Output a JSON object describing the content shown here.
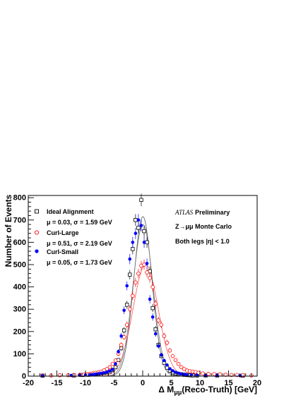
{
  "chart_data": {
    "type": "scatter",
    "title": "",
    "xlabel": "Δ Mμμ(Reco-Truth) [GeV]",
    "xlabel_main": "Δ M",
    "xlabel_sub": "μμ",
    "xlabel_rest": "(Reco-Truth) [GeV]",
    "ylabel": "Number of Events",
    "xlim": [
      -20,
      20
    ],
    "ylim": [
      0,
      810
    ],
    "x_ticks": [
      -20,
      -15,
      -10,
      -5,
      0,
      5,
      10,
      15,
      20
    ],
    "y_ticks": [
      0,
      100,
      200,
      300,
      400,
      500,
      600,
      700,
      800
    ],
    "grid": false,
    "legend_position": "top-left",
    "annotations": {
      "experiment": "ATLAS",
      "status": "Preliminary",
      "process": "Z→μμ Monte Carlo",
      "cut": "Both legs |η| < 1.0"
    },
    "series": [
      {
        "name": "Ideal Alignment",
        "stats": "μ =  0.03,  σ =  1.59 GeV",
        "marker": "open-square",
        "color": "#000000",
        "fit_sigma": 1.59,
        "fit_mean": 0.03,
        "fit_peak": 715,
        "x": [
          -17.5,
          -12,
          -10.5,
          -9.5,
          -8.75,
          -8.25,
          -7.75,
          -7.25,
          -6.75,
          -6.25,
          -5.75,
          -5.25,
          -4.75,
          -4.25,
          -3.75,
          -3.25,
          -2.75,
          -2.25,
          -1.75,
          -1.25,
          -0.75,
          -0.25,
          0.25,
          0.75,
          1.25,
          1.75,
          2.25,
          2.75,
          3.25,
          3.75,
          4.25,
          4.75,
          5.25,
          5.75,
          6.25,
          6.75,
          7.25,
          7.75,
          8.25,
          8.75,
          9.5,
          11,
          13,
          17.5
        ],
        "y": [
          2,
          3,
          5,
          6,
          8,
          9,
          11,
          13,
          15,
          17,
          20,
          28,
          40,
          72,
          125,
          205,
          320,
          455,
          570,
          700,
          665,
          790,
          650,
          600,
          470,
          305,
          210,
          140,
          90,
          60,
          38,
          25,
          17,
          13,
          10,
          8,
          6,
          5,
          4,
          3,
          3,
          3,
          3,
          2
        ]
      },
      {
        "name": "Curl-Large",
        "stats": "μ =  0.51,  σ =  2.19 GeV",
        "marker": "open-circle",
        "color": "#ff0000",
        "fit_sigma": 2.19,
        "fit_mean": 0.51,
        "fit_peak": 500,
        "x": [
          -17.5,
          -16,
          -14.5,
          -13,
          -12,
          -11,
          -10.25,
          -9.75,
          -9.25,
          -8.75,
          -8.25,
          -7.75,
          -7.25,
          -6.75,
          -6.25,
          -5.75,
          -5.25,
          -4.75,
          -4.25,
          -3.75,
          -3.25,
          -2.75,
          -2.25,
          -1.75,
          -1.25,
          -0.75,
          -0.25,
          0.25,
          0.75,
          1.25,
          1.75,
          2.25,
          2.75,
          3.25,
          3.75,
          4.25,
          4.75,
          5.25,
          5.75,
          6.25,
          6.75,
          7.25,
          7.75,
          8.25,
          8.75,
          9.25,
          9.75,
          10.5,
          11.5,
          12.5,
          13.5,
          14.5,
          15.5,
          16.5,
          17.5,
          19
        ],
        "y": [
          3,
          3,
          4,
          4,
          5,
          6,
          7,
          8,
          10,
          12,
          15,
          17,
          20,
          26,
          32,
          40,
          55,
          70,
          100,
          140,
          175,
          230,
          300,
          360,
          420,
          460,
          495,
          500,
          465,
          440,
          400,
          325,
          250,
          230,
          180,
          150,
          115,
          90,
          72,
          55,
          40,
          32,
          25,
          22,
          20,
          18,
          15,
          12,
          10,
          9,
          8,
          6,
          5,
          5,
          4,
          3
        ]
      },
      {
        "name": "Curl-Small",
        "stats": "μ =  0.05,  σ =  1.73 GeV",
        "marker": "filled-circle",
        "color": "#0000ff",
        "fit_sigma": 1.73,
        "fit_mean": 0.05,
        "fit_peak": 680,
        "x": [
          -17.5,
          -12.5,
          -11,
          -10,
          -9.25,
          -8.75,
          -8.25,
          -7.75,
          -7.25,
          -6.75,
          -6.25,
          -5.75,
          -5.25,
          -4.75,
          -4.25,
          -3.75,
          -3.25,
          -2.75,
          -2.25,
          -1.75,
          -1.25,
          -0.75,
          -0.25,
          0.25,
          0.75,
          1.25,
          1.75,
          2.25,
          2.75,
          3.25,
          3.75,
          4.25,
          4.75,
          5.25,
          5.75,
          6.25,
          6.75,
          7.25,
          7.75,
          8.5,
          9.5,
          11,
          13,
          17
        ],
        "y": [
          2,
          3,
          4,
          5,
          6,
          7,
          9,
          11,
          13,
          15,
          18,
          23,
          30,
          55,
          110,
          180,
          295,
          405,
          525,
          600,
          640,
          700,
          675,
          600,
          505,
          345,
          265,
          190,
          135,
          95,
          70,
          50,
          33,
          24,
          17,
          13,
          10,
          8,
          6,
          5,
          4,
          3,
          3,
          2
        ]
      }
    ]
  }
}
